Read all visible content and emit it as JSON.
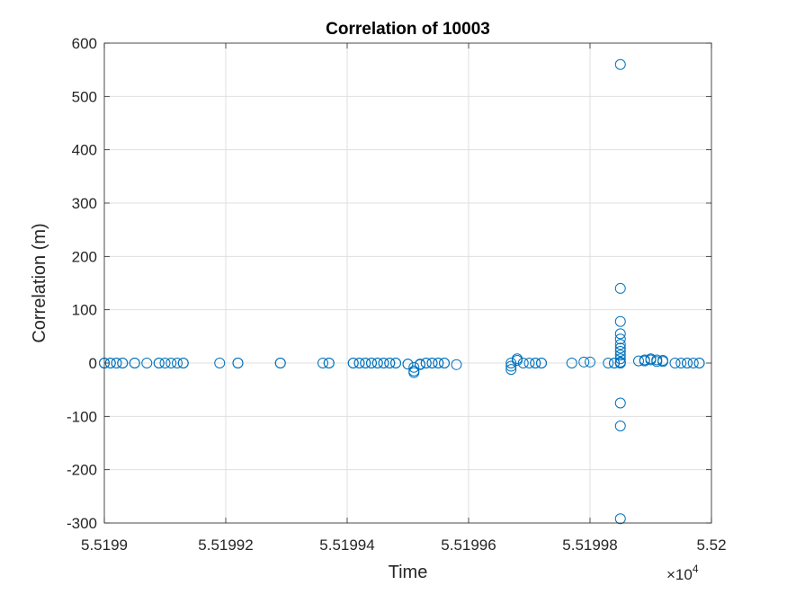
{
  "chart_data": {
    "type": "scatter",
    "title": "Correlation of 10003",
    "xlabel": "Time",
    "ylabel": "Correlation (m)",
    "x_exponent_label": "×10",
    "x_exponent_power": "4",
    "xlim": [
      5.5199,
      5.52
    ],
    "ylim": [
      -300,
      600
    ],
    "x_ticks": [
      5.5199,
      5.51992,
      5.51994,
      5.51996,
      5.51998,
      5.52
    ],
    "x_tick_labels": [
      "5.5199",
      "5.51992",
      "5.51994",
      "5.51996",
      "5.51998",
      "5.52"
    ],
    "y_ticks": [
      -300,
      -200,
      -100,
      0,
      100,
      200,
      300,
      400,
      500,
      600
    ],
    "y_tick_labels": [
      "-300",
      "-200",
      "-100",
      "0",
      "100",
      "200",
      "300",
      "400",
      "500",
      "600"
    ],
    "grid": true,
    "marker": "open-circle",
    "marker_color": "#0072BD",
    "series": [
      {
        "x": [
          5.5199,
          5.5199,
          5.5199,
          5.519901,
          5.519901,
          5.519902,
          5.519902,
          5.519903,
          5.519903,
          5.519905,
          5.519905,
          5.519907,
          5.519909,
          5.519909,
          5.51991,
          5.519911,
          5.519912,
          5.519913,
          5.519913,
          5.519919,
          5.519922,
          5.519922,
          5.519929,
          5.519929,
          5.519936,
          5.519937,
          5.519937,
          5.519941,
          5.519941,
          5.519942,
          5.519942,
          5.519943,
          5.519943,
          5.519944,
          5.519944,
          5.519945,
          5.519945,
          5.519946,
          5.519946,
          5.519947,
          5.519947,
          5.519948,
          5.519948,
          5.51995,
          5.51995,
          5.519951,
          5.519951,
          5.519951,
          5.519952,
          5.519952,
          5.519953,
          5.519953,
          5.519954,
          5.519954,
          5.519955,
          5.519955,
          5.519956,
          5.519956,
          5.519958,
          5.519967,
          5.519967,
          5.519967,
          5.519968,
          5.519968,
          5.519969,
          5.51997,
          5.519971,
          5.519971,
          5.519972,
          5.519972,
          5.519977,
          5.519979,
          5.51998,
          5.519983,
          5.519984,
          5.519984,
          5.519985,
          5.519985,
          5.519985,
          5.519985,
          5.519985,
          5.519985,
          5.519985,
          5.519985,
          5.519985,
          5.519985,
          5.519985,
          5.519985,
          5.519985,
          5.519985,
          5.519985,
          5.519985,
          5.519988,
          5.519989,
          5.519989,
          5.51999,
          5.51999,
          5.519991,
          5.519991,
          5.519992,
          5.519992,
          5.519994,
          5.519995,
          5.519996,
          5.519996,
          5.519997,
          5.519998,
          5.519998
        ],
        "y": [
          0,
          0,
          0,
          0,
          0,
          0,
          0,
          0,
          0,
          0,
          0,
          0,
          0,
          0,
          0,
          0,
          0,
          0,
          0,
          0,
          0,
          0,
          0,
          0,
          0,
          0,
          0,
          0,
          0,
          0,
          0,
          0,
          0,
          0,
          0,
          0,
          0,
          0,
          0,
          0,
          0,
          0,
          0,
          -2,
          -2,
          -15,
          -18,
          -8,
          -3,
          -2,
          0,
          0,
          0,
          0,
          0,
          0,
          0,
          0,
          -3,
          0,
          -6,
          -12,
          5,
          8,
          0,
          0,
          0,
          0,
          0,
          0,
          0,
          2,
          2,
          0,
          0,
          0,
          2,
          8,
          15,
          22,
          28,
          35,
          45,
          55,
          78,
          140,
          560,
          -75,
          -118,
          -292,
          0,
          0,
          4,
          4,
          6,
          8,
          6,
          6,
          3,
          5,
          3,
          0,
          0,
          0,
          0,
          0,
          0,
          0
        ]
      }
    ]
  }
}
